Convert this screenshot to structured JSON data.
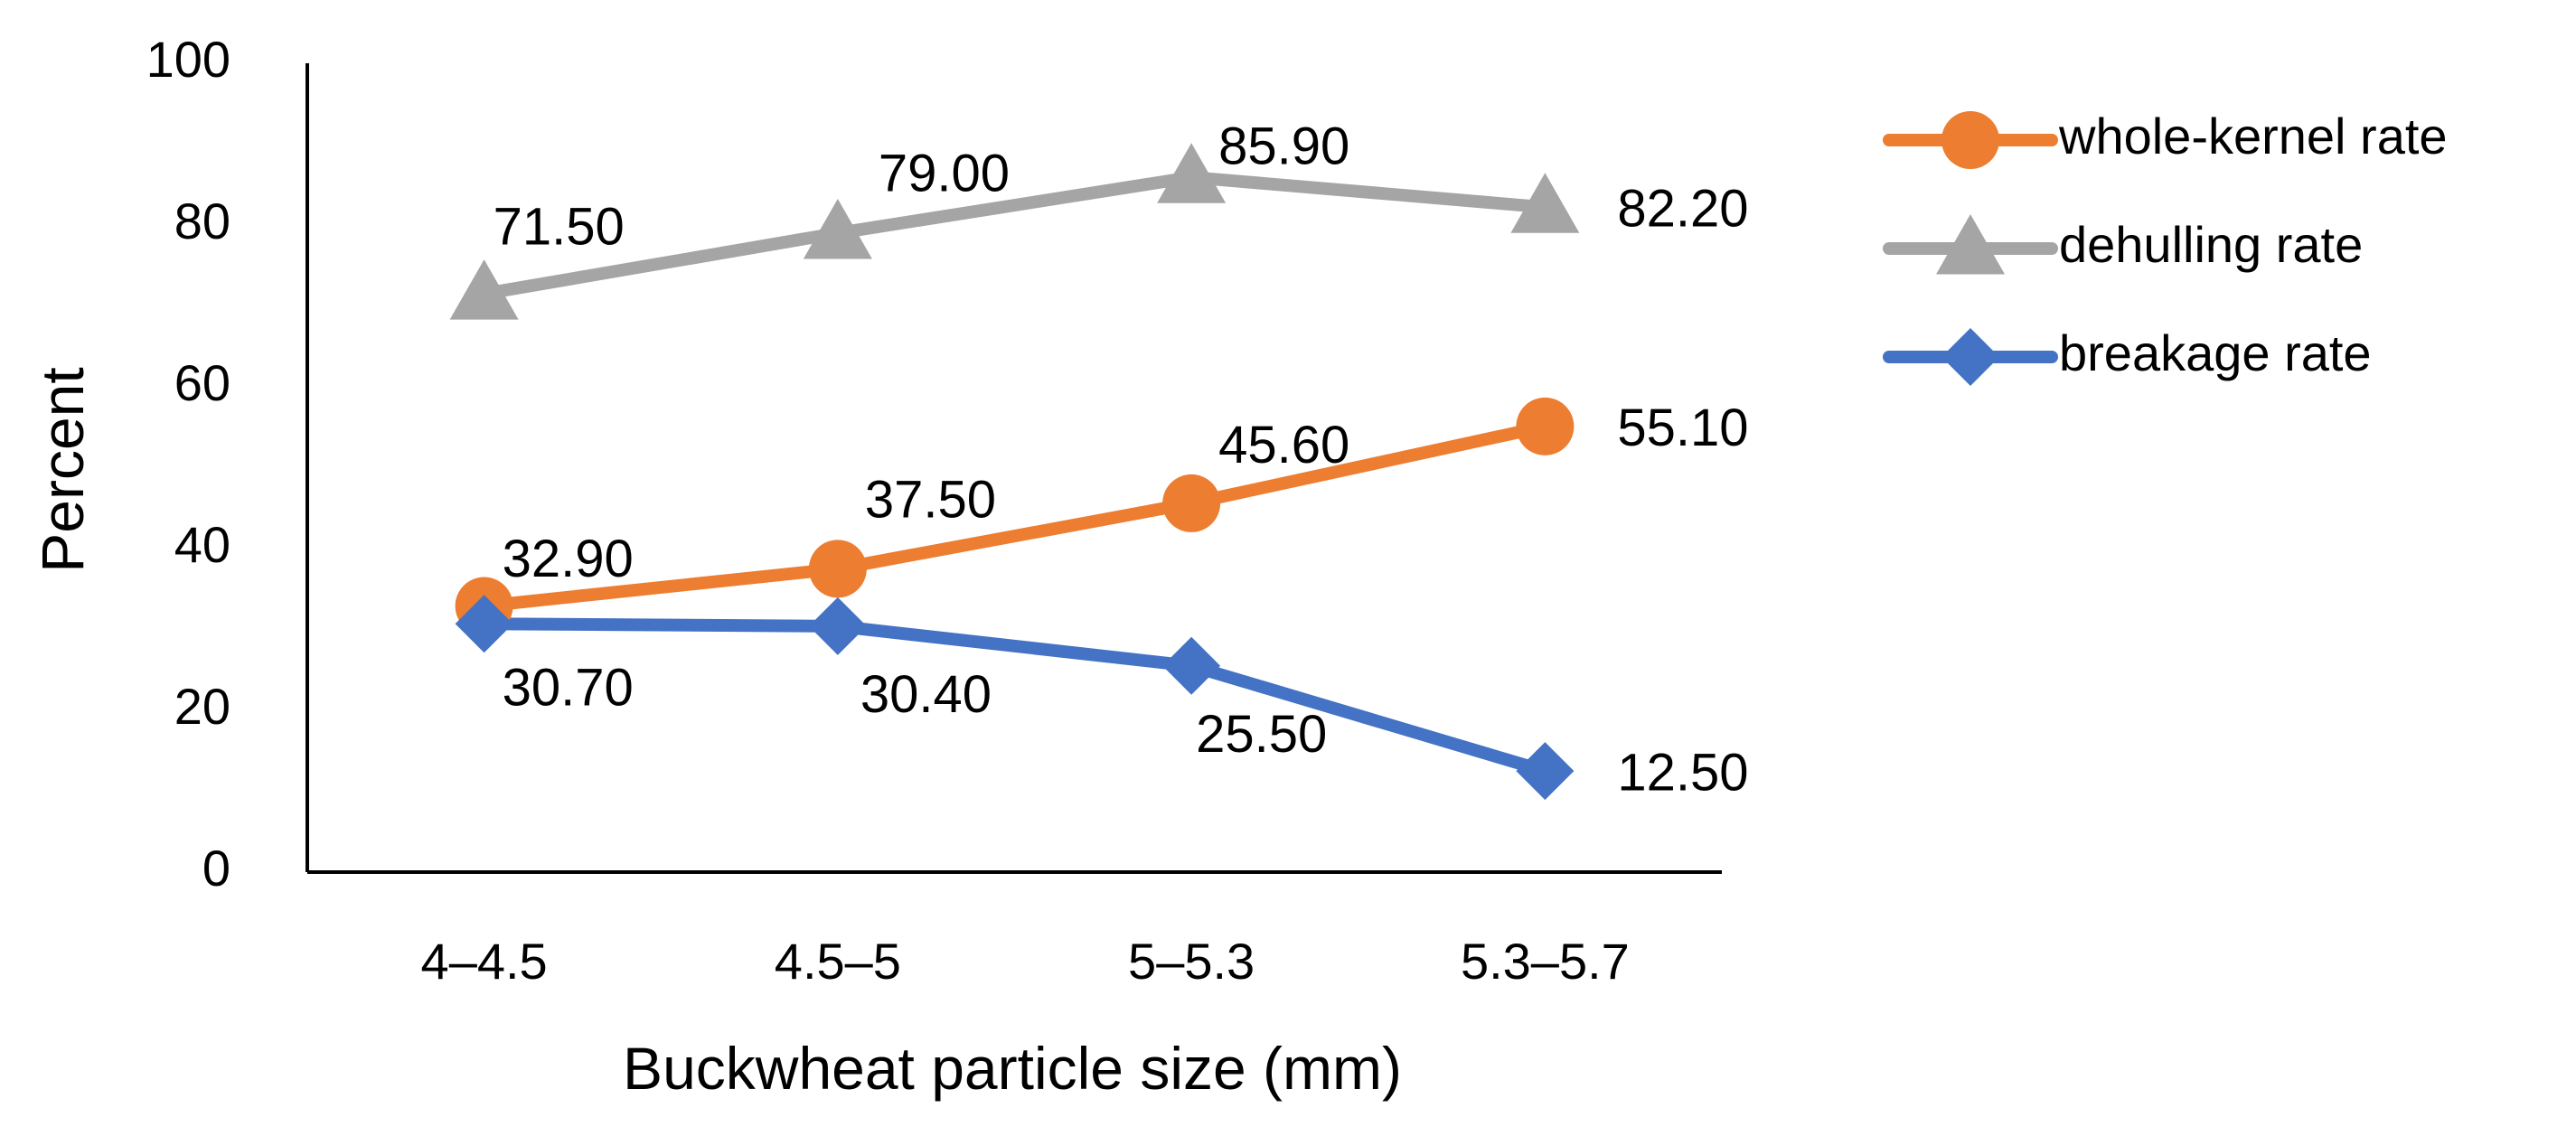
{
  "chart_data": {
    "type": "line",
    "title": "",
    "xlabel": "Buckwheat particle size (mm)",
    "ylabel": "Percent",
    "categories": [
      "4–4.5",
      "4.5–5",
      "5–5.3",
      "5.3–5.7"
    ],
    "ylim": [
      0,
      100
    ],
    "yticks": [
      0,
      20,
      40,
      60,
      80,
      100
    ],
    "grid": false,
    "legend_position": "right",
    "series": [
      {
        "name": "whole-kernel rate",
        "values": [
          32.9,
          37.5,
          45.6,
          55.1
        ],
        "labels": [
          "32.90",
          "37.50",
          "45.60",
          "55.10"
        ],
        "color": "#ED7D31",
        "marker": "circle"
      },
      {
        "name": "dehulling rate",
        "values": [
          71.5,
          79.0,
          85.9,
          82.2
        ],
        "labels": [
          "71.50",
          "79.00",
          "85.90",
          "82.20"
        ],
        "color": "#A5A5A5",
        "marker": "triangle"
      },
      {
        "name": "breakage rate",
        "values": [
          30.7,
          30.4,
          25.5,
          12.5
        ],
        "labels": [
          "30.70",
          "30.40",
          "25.50",
          "12.50"
        ],
        "color": "#4472C4",
        "marker": "diamond"
      }
    ]
  }
}
